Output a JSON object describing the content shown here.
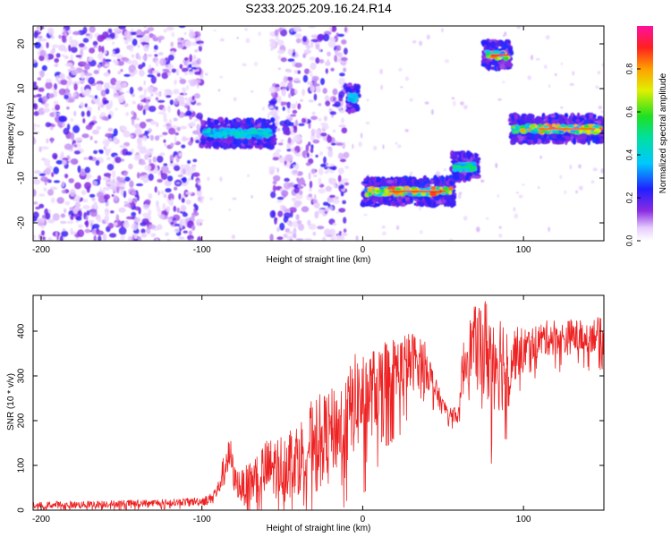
{
  "figure_title": "S233.2025.209.16.24.R14",
  "chart_data": [
    {
      "type": "heatmap",
      "xlabel": "Height of straight line (km)",
      "ylabel": "Frequency (Hz)",
      "xlim": [
        -205,
        150
      ],
      "ylim": [
        -24,
        24
      ],
      "x_ticks": [
        -200,
        -100,
        0,
        100
      ],
      "y_ticks": [
        -20,
        -10,
        0,
        10,
        20
      ],
      "colorbar": {
        "label": "Normalized spectral amplitude",
        "range": [
          0,
          1
        ],
        "ticks": [
          0.0,
          0.2,
          0.4,
          0.6,
          0.8
        ],
        "colormap": "rainbow (white-violet-blue-cyan-green-yellow-red-magenta)"
      },
      "background_noise_regions_km": [
        [
          -205,
          -100
        ],
        [
          -57,
          -10
        ]
      ],
      "signal_tracks": [
        {
          "x_start": -100,
          "x_end": -55,
          "freq_hz": 0,
          "peak_amplitude": 0.45
        },
        {
          "x_start": -10,
          "x_end": -2,
          "freq_hz": 8,
          "peak_amplitude": 0.4
        },
        {
          "x_start": 0,
          "x_end": 57,
          "freq_hz": -13,
          "peak_amplitude": 0.9
        },
        {
          "x_start": 55,
          "x_end": 72,
          "freq_hz": -7.5,
          "peak_amplitude": 0.55
        },
        {
          "x_start": 75,
          "x_end": 92,
          "freq_hz": 17.5,
          "peak_amplitude": 0.9
        },
        {
          "x_start": 92,
          "x_end": 150,
          "freq_hz": 1,
          "peak_amplitude": 0.85
        }
      ]
    },
    {
      "type": "line",
      "xlabel": "Height of straight line (km)",
      "ylabel": "SNR (10 * v/v)",
      "xlim": [
        -205,
        150
      ],
      "ylim": [
        0,
        480
      ],
      "x_ticks": [
        -200,
        -100,
        0,
        100
      ],
      "y_ticks": [
        0,
        100,
        200,
        300,
        400
      ],
      "series": [
        {
          "color": "#ee2222",
          "x": [
            -205,
            -190,
            -175,
            -160,
            -145,
            -130,
            -115,
            -100,
            -95,
            -90,
            -85,
            -82,
            -80,
            -75,
            -70,
            -65,
            -60,
            -55,
            -50,
            -45,
            -40,
            -35,
            -30,
            -25,
            -20,
            -15,
            -10,
            -5,
            0,
            5,
            10,
            15,
            20,
            25,
            30,
            35,
            40,
            45,
            50,
            55,
            60,
            62,
            65,
            70,
            75,
            80,
            85,
            90,
            95,
            100,
            105,
            110,
            115,
            120,
            125,
            130,
            135,
            140,
            145,
            150
          ],
          "y": [
            10,
            12,
            12,
            14,
            15,
            16,
            18,
            20,
            25,
            45,
            110,
            120,
            70,
            50,
            60,
            80,
            90,
            95,
            100,
            115,
            120,
            140,
            170,
            170,
            175,
            185,
            200,
            240,
            250,
            260,
            280,
            300,
            310,
            320,
            330,
            340,
            320,
            270,
            230,
            220,
            210,
            310,
            350,
            380,
            360,
            350,
            340,
            330,
            350,
            360,
            370,
            380,
            385,
            390,
            380,
            390,
            385,
            390,
            395,
            385
          ],
          "spread": [
            8,
            8,
            8,
            8,
            8,
            8,
            8,
            10,
            12,
            20,
            40,
            40,
            30,
            40,
            50,
            60,
            70,
            70,
            75,
            80,
            80,
            85,
            90,
            90,
            95,
            100,
            110,
            110,
            110,
            100,
            90,
            85,
            80,
            75,
            70,
            60,
            50,
            30,
            20,
            20,
            20,
            60,
            70,
            80,
            120,
            130,
            120,
            110,
            60,
            50,
            40,
            40,
            40,
            40,
            40,
            40,
            40,
            40,
            40,
            40
          ]
        }
      ]
    }
  ]
}
